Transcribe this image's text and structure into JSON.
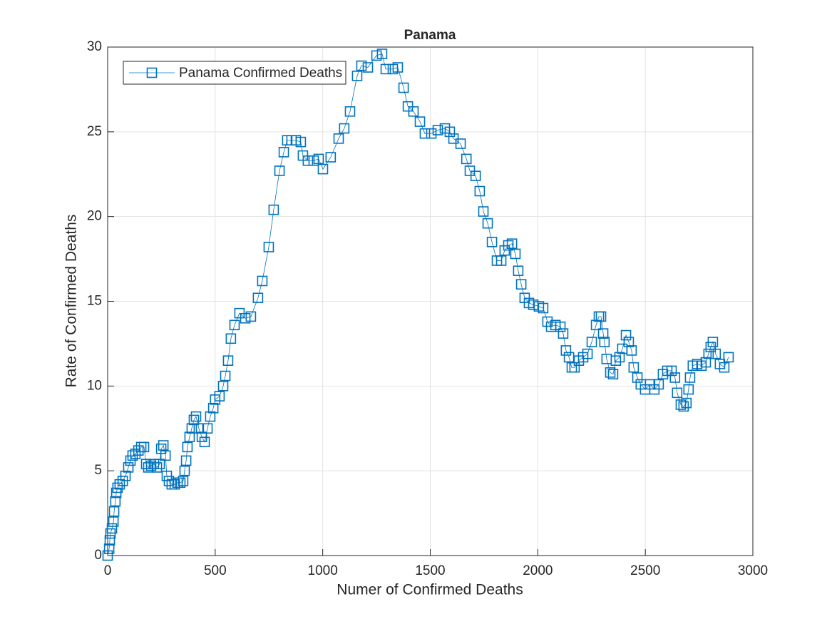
{
  "chart_data": {
    "type": "line",
    "title": "Panama",
    "x_label": "Numer of Confirmed Deaths",
    "y_label": "Rate of Confirmed Deaths",
    "x": [
      0,
      7,
      10,
      13,
      20,
      27,
      30,
      36,
      40,
      46,
      56,
      70,
      83,
      96,
      106,
      116,
      129,
      143,
      156,
      169,
      179,
      189,
      202,
      215,
      229,
      242,
      249,
      259,
      269,
      275,
      285,
      298,
      312,
      325,
      338,
      351,
      358,
      365,
      371,
      381,
      391,
      401,
      411,
      424,
      438,
      451,
      464,
      477,
      491,
      500,
      520,
      537,
      547,
      560,
      573,
      590,
      613,
      640,
      666,
      699,
      719,
      749,
      772,
      799,
      819,
      835,
      855,
      875,
      898,
      908,
      931,
      958,
      981,
      1001,
      1037,
      1074,
      1100,
      1127,
      1160,
      1180,
      1210,
      1250,
      1276,
      1293,
      1326,
      1349,
      1376,
      1396,
      1422,
      1452,
      1475,
      1505,
      1535,
      1568,
      1591,
      1608,
      1641,
      1668,
      1684,
      1711,
      1730,
      1747,
      1767,
      1787,
      1810,
      1830,
      1846,
      1863,
      1880,
      1896,
      1909,
      1923,
      1939,
      1959,
      1979,
      2005,
      2025,
      2045,
      2062,
      2082,
      2105,
      2118,
      2131,
      2145,
      2158,
      2171,
      2191,
      2211,
      2231,
      2251,
      2271,
      2284,
      2294,
      2304,
      2310,
      2320,
      2337,
      2350,
      2363,
      2380,
      2393,
      2410,
      2423,
      2436,
      2446,
      2463,
      2479,
      2499,
      2522,
      2542,
      2562,
      2582,
      2602,
      2622,
      2638,
      2648,
      2665,
      2678,
      2691,
      2701,
      2708,
      2721,
      2741,
      2761,
      2781,
      2794,
      2804,
      2814,
      2827,
      2847,
      2867,
      2887
    ],
    "series": [
      {
        "name": "Panama Confirmed Deaths",
        "color": "#0072bd",
        "marker": "square",
        "values": [
          0,
          0.4,
          0.9,
          1.3,
          1.6,
          2.0,
          2.6,
          3.2,
          3.7,
          4.0,
          4.2,
          4.4,
          4.7,
          5.2,
          5.6,
          5.9,
          6.0,
          6.2,
          6.4,
          6.4,
          5.4,
          5.2,
          5.3,
          5.4,
          5.2,
          5.4,
          6.3,
          6.5,
          5.9,
          4.7,
          4.4,
          4.2,
          4.2,
          4.3,
          4.3,
          4.4,
          5.0,
          5.6,
          6.4,
          7.0,
          7.5,
          8.0,
          8.2,
          7.5,
          7.0,
          6.7,
          7.5,
          8.2,
          8.7,
          9.2,
          9.4,
          10.0,
          10.6,
          11.5,
          12.8,
          13.6,
          14.3,
          14.0,
          14.1,
          15.2,
          16.2,
          18.2,
          20.4,
          22.7,
          23.8,
          24.5,
          24.5,
          24.5,
          24.4,
          23.6,
          23.3,
          23.3,
          23.4,
          22.8,
          23.5,
          24.6,
          25.2,
          26.2,
          28.3,
          28.9,
          28.8,
          29.5,
          29.6,
          28.7,
          28.7,
          28.8,
          27.6,
          26.5,
          26.2,
          25.6,
          24.9,
          24.9,
          25.1,
          25.2,
          25.0,
          24.6,
          24.3,
          23.4,
          22.7,
          22.4,
          21.5,
          20.3,
          19.6,
          18.5,
          17.4,
          17.4,
          18.0,
          18.3,
          18.4,
          17.8,
          16.8,
          16.0,
          15.2,
          14.9,
          14.8,
          14.7,
          14.6,
          13.8,
          13.5,
          13.6,
          13.5,
          13.1,
          12.1,
          11.7,
          11.1,
          11.1,
          11.5,
          11.7,
          11.9,
          12.6,
          13.6,
          14.1,
          14.1,
          13.1,
          12.6,
          11.6,
          10.8,
          10.7,
          11.5,
          11.7,
          12.2,
          13.0,
          12.6,
          12.1,
          11.1,
          10.5,
          10.1,
          9.8,
          10.1,
          9.8,
          10.1,
          10.7,
          10.9,
          10.9,
          10.5,
          9.6,
          8.9,
          8.8,
          9.0,
          9.8,
          10.5,
          11.2,
          11.3,
          11.2,
          11.4,
          11.9,
          12.3,
          12.6,
          11.9,
          11.3,
          11.1,
          11.7
        ]
      }
    ],
    "xlim": [
      0,
      3000
    ],
    "xticks": [
      0,
      500,
      1000,
      1500,
      2000,
      2500,
      3000
    ],
    "ylim": [
      0,
      30
    ],
    "yticks": [
      0,
      5,
      10,
      15,
      20,
      25,
      30
    ],
    "grid": true,
    "legend": "upper-left"
  }
}
